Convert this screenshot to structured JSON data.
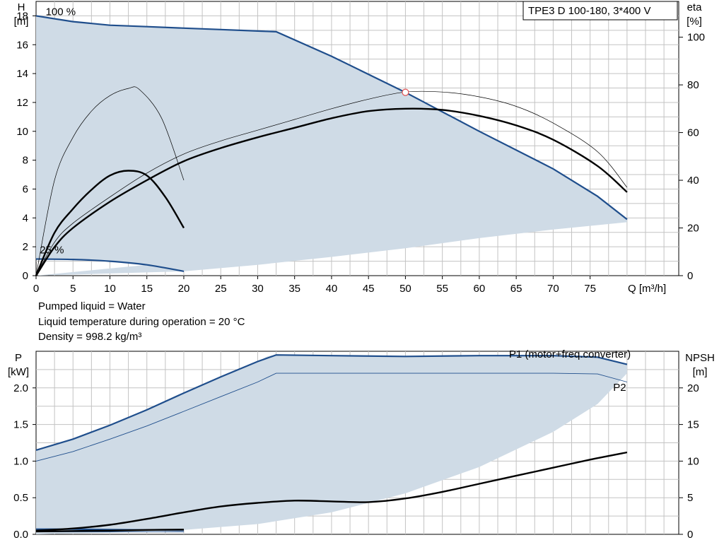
{
  "title_box": "TPE3 D 100-180, 3*400 V",
  "notes": [
    "Pumped liquid = Water",
    "Liquid temperature during operation = 20 °C",
    "Density = 998.2 kg/m³"
  ],
  "colors": {
    "curve": "#1f4e8c",
    "fill": "#cfdbe6",
    "grid": "#c3c3c3",
    "black": "#000000",
    "marker": "#e05050"
  },
  "chart_data": [
    {
      "type": "line",
      "name": "head-efficiency",
      "xlabel": "Q [m³/h]",
      "ylabel": [
        "H",
        "[m]"
      ],
      "y2label": [
        "eta",
        "[%]"
      ],
      "xlim": [
        0,
        87
      ],
      "ylim": [
        0,
        19
      ],
      "y2lim": [
        0,
        115
      ],
      "xticks": [
        0,
        5,
        10,
        15,
        20,
        25,
        30,
        35,
        40,
        45,
        50,
        55,
        60,
        65,
        70,
        75
      ],
      "yticks": [
        0,
        2,
        4,
        6,
        8,
        10,
        12,
        14,
        16,
        18
      ],
      "y2ticks": [
        0,
        20,
        40,
        60,
        80,
        100
      ],
      "grid": true,
      "annotations": [
        {
          "text": "100 %",
          "x": 1.3,
          "y": 18.0
        },
        {
          "text": "25 %",
          "x": 0.5,
          "y": 1.5
        }
      ],
      "duty_point": {
        "x": 50,
        "y": 12.7
      },
      "series": [
        {
          "name": "100 %",
          "axis": "y",
          "style": "blue-thick",
          "x": [
            0,
            5,
            10,
            15,
            20,
            25,
            30,
            32.5,
            40,
            50,
            60,
            70,
            76,
            80
          ],
          "y": [
            18.0,
            17.6,
            17.35,
            17.25,
            17.15,
            17.05,
            16.95,
            16.9,
            15.2,
            12.7,
            10.0,
            7.4,
            5.5,
            3.9
          ]
        },
        {
          "name": "25 %",
          "axis": "y",
          "style": "blue-thick",
          "x": [
            0,
            5,
            10,
            15,
            20
          ],
          "y": [
            1.15,
            1.12,
            1.0,
            0.75,
            0.3
          ]
        },
        {
          "name": "min-boundary",
          "axis": "y",
          "style": "fill-bottom",
          "x": [
            0,
            20,
            30,
            40,
            50,
            60,
            70,
            80
          ],
          "y": [
            0,
            0.3,
            0.75,
            1.3,
            1.9,
            2.6,
            3.2,
            3.7
          ]
        },
        {
          "name": "eta-100-thick",
          "axis": "y2",
          "style": "black-thick",
          "x": [
            0,
            2.5,
            5,
            10,
            15,
            20,
            25,
            30,
            35,
            40,
            45,
            50,
            55,
            60,
            65,
            70,
            76,
            80
          ],
          "y": [
            0,
            12,
            20,
            31,
            40,
            48,
            53.5,
            58,
            62,
            66,
            69,
            70,
            69.5,
            67,
            63,
            57,
            46,
            35
          ]
        },
        {
          "name": "eta-100-thin",
          "axis": "y2",
          "style": "black-thin",
          "x": [
            0,
            2.5,
            5,
            10,
            15,
            20,
            25,
            30,
            35,
            40,
            45,
            50,
            55,
            60,
            65,
            70,
            76,
            80
          ],
          "y": [
            0,
            14,
            22,
            33,
            43,
            51,
            56.5,
            61,
            65.5,
            70,
            74,
            77,
            77,
            75,
            71,
            64,
            52,
            37
          ]
        },
        {
          "name": "eta-25-thick",
          "axis": "y2",
          "style": "black-thick",
          "x": [
            0,
            2.5,
            5,
            7.5,
            10,
            12.5,
            15,
            17.5,
            20
          ],
          "y": [
            0,
            18,
            28,
            36,
            42,
            44,
            42,
            33,
            20
          ]
        },
        {
          "name": "eta-25-thin",
          "axis": "y2",
          "style": "black-thin",
          "x": [
            0,
            2.5,
            5,
            7.5,
            10,
            12.5,
            14,
            17,
            20
          ],
          "y": [
            0,
            40,
            58,
            69,
            75.5,
            78.5,
            78,
            66,
            40
          ]
        }
      ]
    },
    {
      "type": "line",
      "name": "power-npsh",
      "ylabel": [
        "P",
        "[kW]"
      ],
      "y2label": [
        "NPSH",
        "[m]"
      ],
      "xlim": [
        0,
        87
      ],
      "ylim": [
        0,
        2.5
      ],
      "y2lim": [
        0,
        25
      ],
      "yticks": [
        0.0,
        0.5,
        1.0,
        1.5,
        2.0
      ],
      "ytick_labels": [
        "0.0",
        "0.5",
        "1.0",
        "1.5",
        "2.0"
      ],
      "y2ticks": [
        0,
        5,
        10,
        15,
        20
      ],
      "grid": true,
      "series": [
        {
          "name": "P1 (motor+freq.converter)",
          "axis": "y",
          "style": "blue-thick",
          "labeled": true,
          "x": [
            0,
            5,
            10,
            15,
            20,
            25,
            30,
            32.5,
            40,
            50,
            60,
            70,
            76,
            80
          ],
          "y": [
            1.15,
            1.3,
            1.49,
            1.7,
            1.93,
            2.15,
            2.36,
            2.45,
            2.44,
            2.43,
            2.44,
            2.44,
            2.42,
            2.32
          ]
        },
        {
          "name": "P2",
          "axis": "y",
          "style": "blue-thin",
          "labeled": true,
          "x": [
            0,
            5,
            10,
            15,
            20,
            25,
            30,
            32.5,
            40,
            50,
            60,
            70,
            76,
            80
          ],
          "y": [
            1.0,
            1.13,
            1.3,
            1.48,
            1.68,
            1.88,
            2.08,
            2.2,
            2.2,
            2.2,
            2.2,
            2.2,
            2.19,
            2.08
          ]
        },
        {
          "name": "P1-25",
          "axis": "y",
          "style": "blue-thick",
          "x": [
            0,
            5,
            10,
            15,
            20
          ],
          "y": [
            0.07,
            0.07,
            0.065,
            0.06,
            0.055
          ]
        },
        {
          "name": "P2-25",
          "axis": "y",
          "style": "blue-thin",
          "x": [
            0,
            20
          ],
          "y": [
            0.035,
            0.035
          ]
        },
        {
          "name": "NPSH-100",
          "axis": "y2",
          "style": "black-thick",
          "x": [
            0,
            5,
            10,
            15,
            20,
            25,
            30,
            35,
            40,
            45,
            50,
            55,
            60,
            65,
            70,
            75,
            80
          ],
          "y": [
            0.5,
            0.8,
            1.3,
            2.1,
            3.0,
            3.8,
            4.3,
            4.6,
            4.5,
            4.4,
            4.9,
            5.8,
            6.9,
            8.0,
            9.1,
            10.2,
            11.2
          ]
        },
        {
          "name": "NPSH-25",
          "axis": "y2",
          "style": "black-thick",
          "x": [
            0,
            5,
            10,
            15,
            20
          ],
          "y": [
            0.4,
            0.45,
            0.5,
            0.6,
            0.65
          ]
        },
        {
          "name": "npsh-boundary",
          "axis": "y",
          "style": "fill-bottom",
          "x": [
            0,
            10,
            20,
            30,
            40,
            50,
            60,
            70,
            76,
            80
          ],
          "y": [
            0.0,
            0.02,
            0.06,
            0.14,
            0.3,
            0.56,
            0.92,
            1.4,
            1.78,
            2.2
          ]
        }
      ]
    }
  ]
}
